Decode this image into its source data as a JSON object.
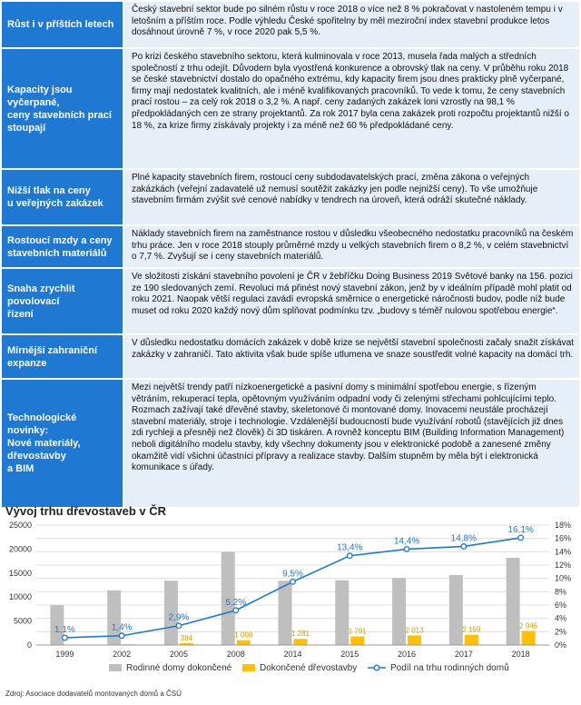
{
  "rows": [
    {
      "label": "Růst i v příštích letech",
      "text": "Český stavební sektor bude po silném růstu v roce 2018 o více než 8 % pokračovat v nastoleném tempu i v letošním a příštím roce. Podle výhledu České spořitelny by měl meziroční index stavební produkce letos dosáhnout úrovně 7 %, v roce 2020 pak 5,5 %."
    },
    {
      "label": "Kapacity jsou vyčerpané,\nceny stavebních prací\nstoupají",
      "text": "Po krizi českého stavebního sektoru, která kulminovala v roce 2013, musela řada malých a středních společností z trhu odejít. Důvodem byla vyostřená konkurence a obrovský tlak na ceny. V průběhu roku 2018 se české stavebnictví dostalo do opačného extrému, kdy kapacity firem jsou dnes prakticky plně vyčerpané, firmy mají nedostatek kvalitních, ale i méně kvalifikovaných pracovníků. To vede k tomu, že ceny stavebních prací rostou – za celý rok 2018 o 3,2 %. A např. ceny zadaných zakázek loni vzrostly na 98,1 % předpokládaných cen ze strany projektantů. Za rok 2017 byla cena zakázek proti rozpočtu projektantů nižší o 18 %, za krize firmy získávaly projekty i za méně než 60 % předpokládané ceny."
    },
    {
      "label": "Nižší tlak na ceny\nu veřejných zakázek",
      "text": "Plné kapacity stavebních firem, rostoucí ceny subdodavatelských prací, změna zákona o veřejných zakázkách (veřejní zadavatelé už nemusí soutěžit zakázky jen podle nejnižší ceny). To vše umožňuje stavebním firmám zvýšit své cenové nabídky v tendrech na úroveň, která odráží skutečné náklady."
    },
    {
      "label": "Rostoucí mzdy a ceny\nstavebních materiálů",
      "text": "Náklady stavebních firem na zaměstnance rostou v důsledku všeobecného nedostatku pracovníků na českém trhu práce. Jen v roce 2018 stouply průměrné mzdy u velkých stavebních firem o 8,2 %, v celém stavebnictví o 7,7 %. Zvyšují se i ceny stavebních materiálů."
    },
    {
      "label": "Snaha zrychlit povolovací\nřízení",
      "text": "Ve složitosti získání stavebního povolení je ČR v žebříčku Doing Business 2019 Světové banky na 156. pozici ze 190 sledovaných zemí. Revoluci má přinést nový stavební zákon, jenž by v ideálním případě mohl platit od roku 2021. Naopak větší regulaci zavádí evropská směrnice o energetické náročnosti budov, podle níž bude muset od roku 2020 každý nový dům splňovat podmínku tzv. „budovy s téměř nulovou spotřebou energie“."
    },
    {
      "label": "Mírnější zahraniční expanze",
      "text": "V důsledku nedostatku domácích zakázek v době krize se největší stavební společnosti začaly snažit získávat zakázky v zahraničí. Tato aktivita však bude spíše utlumena ve snaze soustředit volné kapacity na domácí trh."
    },
    {
      "label": "Technologické novinky:\nNové materiály, dřevostavby\na BIM",
      "text": "Mezi největší trendy patří nízkoenergetické a pasivní domy s minimální spotřebou energie, s řízeným větráním, rekuperací tepla, opětovným využíváním odpadní vody či zelenými střechami pohlcujícími teplo. Rozmach zažívají také dřevěné stavby, skeletonové či montované domy. Inovacemi neustále procházejí stavební materiály, stroje i technologie. Vzdálenější budoucností bude využívání robotů (stavějících již dnes zdi rychleji a přesněji než člověk) či 3D tiskáren. A rovněž konceptu BIM (Building Information Management) neboli digitálního modelu stavby, kdy všechny dokumenty jsou v elektronické podobě a zanesené změny okamžitě vidí všichni účastníci přípravy a realizace stavby. Dalším stupněm by měla být i elektronická komunikace s úřady."
    }
  ],
  "chart_title": "Vývoj trhu dřevostaveb v ČR",
  "source": "Zdroj: Asociace dodavatelů montovaných domů a ČSÚ",
  "colors": {
    "grey": "#bfbfbf",
    "gold": "#ffc000",
    "line": "#1f78d1",
    "label_blue": "#1f78d1",
    "grid": "#d9d9d9"
  },
  "chart_data": {
    "type": "bar",
    "categories": [
      "1999",
      "2002",
      "2005",
      "2008",
      "2014",
      "2015",
      "2016",
      "2017",
      "2018"
    ],
    "series": [
      {
        "name": "Rodinné domy dokončené",
        "kind": "bar",
        "axis": "left",
        "values": [
          8300,
          11400,
          13400,
          19400,
          13400,
          13500,
          14000,
          14600,
          18200
        ]
      },
      {
        "name": "Dokončené dřevostavby",
        "kind": "bar",
        "axis": "left",
        "values": [
          90,
          160,
          384,
          1008,
          1281,
          1791,
          2013,
          2159,
          2945
        ],
        "labels": [
          "",
          "",
          "384",
          "1 008",
          "1 281",
          "1 791",
          "2 013",
          "2 159",
          "2 945"
        ]
      },
      {
        "name": "Podíl na trhu rodinných domů",
        "kind": "line",
        "axis": "right",
        "values": [
          1.1,
          1.4,
          2.9,
          5.2,
          9.5,
          13.4,
          14.4,
          14.8,
          16.1
        ],
        "labels": [
          "1,1%",
          "1,4%",
          "2,9%",
          "5,2%",
          "9,5%",
          "13,4%",
          "14,4%",
          "14,8%",
          "16,1%"
        ]
      }
    ],
    "left_axis": {
      "min": 0,
      "max": 25000,
      "ticks": [
        "0",
        "5000",
        "10000",
        "15000",
        "20000",
        "25000"
      ]
    },
    "right_axis": {
      "min": 0,
      "max": 18,
      "ticks": [
        "0%",
        "2%",
        "4%",
        "6%",
        "8%",
        "10%",
        "12%",
        "14%",
        "16%",
        "18%"
      ]
    },
    "grid": true,
    "legend": "bottom"
  }
}
